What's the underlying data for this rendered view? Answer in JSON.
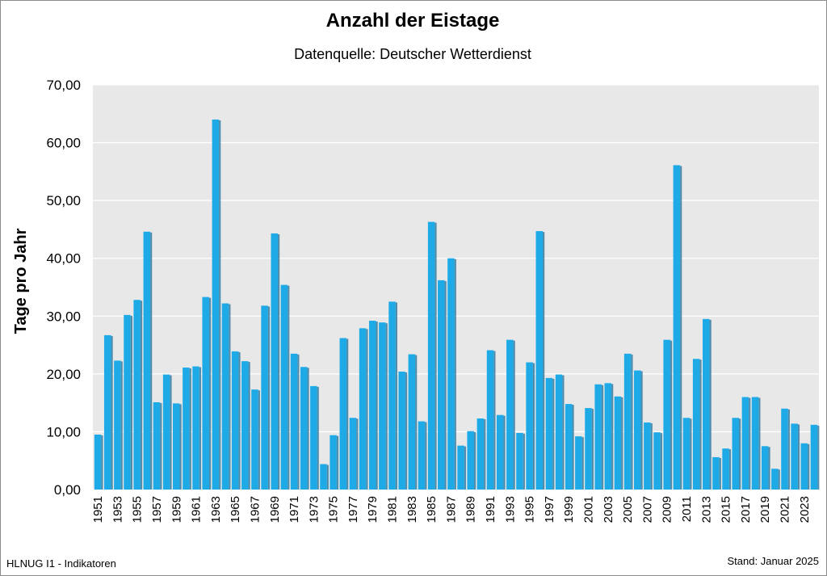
{
  "chart_data": {
    "type": "bar",
    "title": "Anzahl der Eistage",
    "subtitle": "Datenquelle: Deutscher Wetterdienst",
    "xlabel": "",
    "ylabel": "Tage pro Jahr",
    "ylim": [
      0,
      70
    ],
    "yticks": [
      "0,00",
      "10,00",
      "20,00",
      "30,00",
      "40,00",
      "50,00",
      "60,00",
      "70,00"
    ],
    "grid": true,
    "legend": "none",
    "bar_color": "#1eaae6",
    "plot_background": "#e8e8e8",
    "categories": [
      "1951",
      "1952",
      "1953",
      "1954",
      "1955",
      "1956",
      "1957",
      "1958",
      "1959",
      "1960",
      "1961",
      "1962",
      "1963",
      "1964",
      "1965",
      "1966",
      "1967",
      "1968",
      "1969",
      "1970",
      "1971",
      "1972",
      "1973",
      "1974",
      "1975",
      "1976",
      "1977",
      "1978",
      "1979",
      "1980",
      "1981",
      "1982",
      "1983",
      "1984",
      "1985",
      "1986",
      "1987",
      "1988",
      "1989",
      "1990",
      "1991",
      "1992",
      "1993",
      "1994",
      "1995",
      "1996",
      "1997",
      "1998",
      "1999",
      "2000",
      "2001",
      "2002",
      "2003",
      "2004",
      "2005",
      "2006",
      "2007",
      "2008",
      "2009",
      "2010",
      "2011",
      "2012",
      "2013",
      "2014",
      "2015",
      "2016",
      "2017",
      "2018",
      "2019",
      "2020",
      "2021",
      "2022",
      "2023",
      "2024"
    ],
    "tick_labels": [
      "1951",
      "1953",
      "1955",
      "1957",
      "1959",
      "1961",
      "1963",
      "1965",
      "1967",
      "1969",
      "1971",
      "1973",
      "1975",
      "1977",
      "1979",
      "1981",
      "1983",
      "1985",
      "1987",
      "1989",
      "1991",
      "1993",
      "1995",
      "1997",
      "1999",
      "2001",
      "2003",
      "2005",
      "2007",
      "2009",
      "2011",
      "2013",
      "2015",
      "2017",
      "2019",
      "2021",
      "2023"
    ],
    "values": [
      9.5,
      26.7,
      22.3,
      30.2,
      32.8,
      44.6,
      15.1,
      19.9,
      14.9,
      21.1,
      21.3,
      33.3,
      64.0,
      32.2,
      23.9,
      22.2,
      17.3,
      31.8,
      44.3,
      35.4,
      23.5,
      21.2,
      17.9,
      4.4,
      9.4,
      26.2,
      12.4,
      27.9,
      29.2,
      28.9,
      32.5,
      20.4,
      23.4,
      11.8,
      46.3,
      36.2,
      40.0,
      7.6,
      10.1,
      12.3,
      24.1,
      12.9,
      25.9,
      9.8,
      22.0,
      44.7,
      19.3,
      19.9,
      14.8,
      9.2,
      14.1,
      18.2,
      18.4,
      16.1,
      23.5,
      20.6,
      11.6,
      9.9,
      25.9,
      56.1,
      12.4,
      22.6,
      29.5,
      5.6,
      7.1,
      12.4,
      16.0,
      16.0,
      7.5,
      3.6,
      14.0,
      11.4,
      8.0,
      11.2
    ]
  },
  "footer": {
    "left": "HLNUG I1 - Indikatoren",
    "right": "Stand: Januar 2025"
  }
}
